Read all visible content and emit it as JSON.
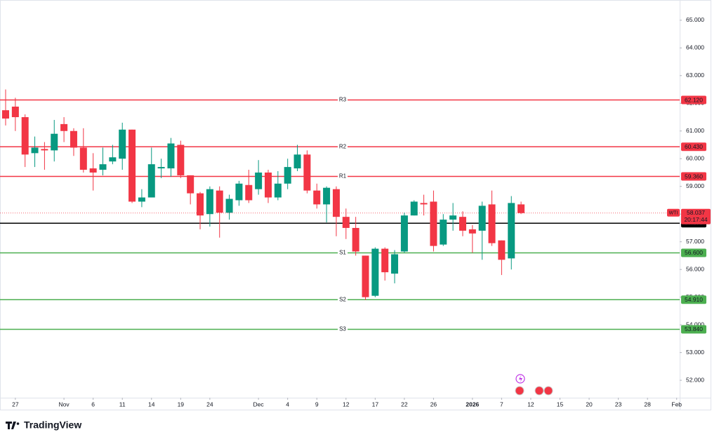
{
  "chart_data": {
    "type": "candlestick",
    "up_color": "#089981",
    "down_color": "#f23645",
    "xlim": [
      -0.578,
      69.31
    ],
    "xticks": [
      {
        "value": 1,
        "label": "27"
      },
      {
        "value": 6,
        "label": "Nov"
      },
      {
        "value": 9,
        "label": "6"
      },
      {
        "value": 12,
        "label": "11"
      },
      {
        "value": 15,
        "label": "14"
      },
      {
        "value": 18,
        "label": "19"
      },
      {
        "value": 21,
        "label": "24"
      },
      {
        "value": 26,
        "label": "Dec"
      },
      {
        "value": 29,
        "label": "4"
      },
      {
        "value": 32,
        "label": "9"
      },
      {
        "value": 35,
        "label": "12"
      },
      {
        "value": 38,
        "label": "17"
      },
      {
        "value": 41,
        "label": "22"
      },
      {
        "value": 44,
        "label": "26"
      },
      {
        "value": 48,
        "label": "2026"
      },
      {
        "value": 51,
        "label": "7"
      },
      {
        "value": 54,
        "label": "12"
      },
      {
        "value": 57,
        "label": "15"
      },
      {
        "value": 60,
        "label": "20"
      },
      {
        "value": 63,
        "label": "23"
      },
      {
        "value": 66,
        "label": "28"
      },
      {
        "value": 69,
        "label": "Feb"
      }
    ],
    "ylim": [
      51.37,
      65.73
    ],
    "yticks": [
      {
        "value": 52,
        "label": "52.000"
      },
      {
        "value": 53,
        "label": "53.000"
      },
      {
        "value": 54,
        "label": "54.000"
      },
      {
        "value": 55,
        "label": "55.000"
      },
      {
        "value": 56,
        "label": "56.000"
      },
      {
        "value": 57,
        "label": "57.000"
      },
      {
        "value": 58,
        "label": "58.000"
      },
      {
        "value": 59,
        "label": "59.000"
      },
      {
        "value": 60,
        "label": "60.000"
      },
      {
        "value": 61,
        "label": "61.000"
      },
      {
        "value": 62,
        "label": "62.000"
      },
      {
        "value": 63,
        "label": "63.000"
      },
      {
        "value": 64,
        "label": "64.000"
      },
      {
        "value": 65,
        "label": "65.000"
      }
    ],
    "open": [
      61.75,
      61.88,
      61.5,
      60.2,
      60.35,
      60.3,
      61.25,
      61.0,
      60.4,
      59.65,
      59.6,
      59.9,
      60.0,
      61.05,
      58.45,
      58.6,
      59.65,
      59.65,
      60.5,
      59.4,
      58.75,
      58.0,
      58.85,
      58.05,
      58.5,
      59.05,
      58.9,
      59.5,
      58.6,
      59.1,
      59.65,
      60.15,
      58.85,
      58.35,
      58.9,
      57.9,
      57.5,
      56.5,
      55.05,
      56.75,
      55.85,
      56.65,
      57.95,
      58.4,
      58.45,
      56.9,
      57.8,
      57.9,
      57.45,
      57.4,
      58.35,
      57.05,
      56.4,
      58.35
    ],
    "high": [
      62.5,
      62.2,
      61.6,
      60.8,
      60.6,
      61.4,
      61.5,
      61.1,
      61.1,
      60.2,
      60.4,
      60.5,
      61.3,
      61.05,
      58.9,
      60.4,
      60.0,
      60.75,
      60.65,
      59.4,
      58.8,
      59.0,
      59.0,
      58.7,
      59.2,
      59.6,
      59.95,
      59.6,
      59.55,
      60.0,
      60.5,
      60.3,
      59.1,
      59.0,
      59.0,
      58.2,
      57.9,
      56.5,
      56.8,
      56.8,
      56.7,
      58.05,
      58.5,
      58.7,
      58.85,
      58.0,
      58.4,
      58.1,
      57.6,
      58.45,
      58.85,
      57.05,
      58.65,
      58.45
    ],
    "low": [
      61.2,
      61.0,
      59.7,
      59.7,
      59.6,
      59.9,
      60.6,
      60.1,
      59.5,
      58.85,
      59.4,
      59.8,
      59.6,
      58.4,
      58.25,
      58.6,
      59.3,
      59.35,
      59.3,
      58.35,
      57.45,
      57.55,
      57.15,
      57.8,
      58.3,
      58.4,
      58.7,
      58.4,
      58.5,
      58.9,
      59.55,
      58.75,
      58.2,
      57.7,
      57.2,
      57.1,
      56.5,
      54.9,
      55.0,
      55.6,
      55.5,
      56.6,
      57.95,
      57.95,
      56.65,
      56.85,
      57.4,
      57.2,
      56.6,
      56.35,
      56.85,
      55.8,
      56.0,
      58.0
    ],
    "close": [
      61.45,
      61.5,
      60.15,
      60.4,
      60.3,
      60.9,
      61.0,
      60.4,
      59.6,
      59.5,
      59.8,
      60.05,
      61.05,
      58.45,
      58.6,
      59.8,
      59.7,
      60.55,
      59.4,
      58.75,
      57.95,
      58.9,
      58.05,
      58.55,
      59.1,
      58.5,
      59.5,
      58.6,
      59.1,
      59.7,
      60.15,
      58.85,
      58.35,
      58.95,
      57.9,
      57.5,
      56.65,
      55.0,
      56.75,
      55.9,
      56.55,
      57.95,
      58.45,
      58.35,
      56.85,
      57.8,
      57.95,
      57.4,
      57.3,
      58.3,
      56.95,
      56.35,
      58.4,
      58.037
    ],
    "levels": [
      {
        "name": "R3",
        "value": 62.12,
        "label": "62.120",
        "color": "#f23645"
      },
      {
        "name": "R2",
        "value": 60.43,
        "label": "60.430",
        "color": "#f23645"
      },
      {
        "name": "R1",
        "value": 59.36,
        "label": "59.360",
        "color": "#f23645"
      },
      {
        "value": 57.67,
        "label": "57.670",
        "color": "#000000"
      },
      {
        "name": "S1",
        "value": 56.6,
        "label": "56.600",
        "color": "#4caf50"
      },
      {
        "name": "S2",
        "value": 54.91,
        "label": "54.910",
        "color": "#4caf50"
      },
      {
        "name": "S3",
        "value": 53.84,
        "label": "53.840",
        "color": "#4caf50"
      }
    ],
    "last_price": {
      "symbol": "WTI",
      "value": 58.037,
      "label": "58.037",
      "countdown": "20:17:44",
      "color": "#f23645"
    }
  },
  "brand": "TradingView"
}
